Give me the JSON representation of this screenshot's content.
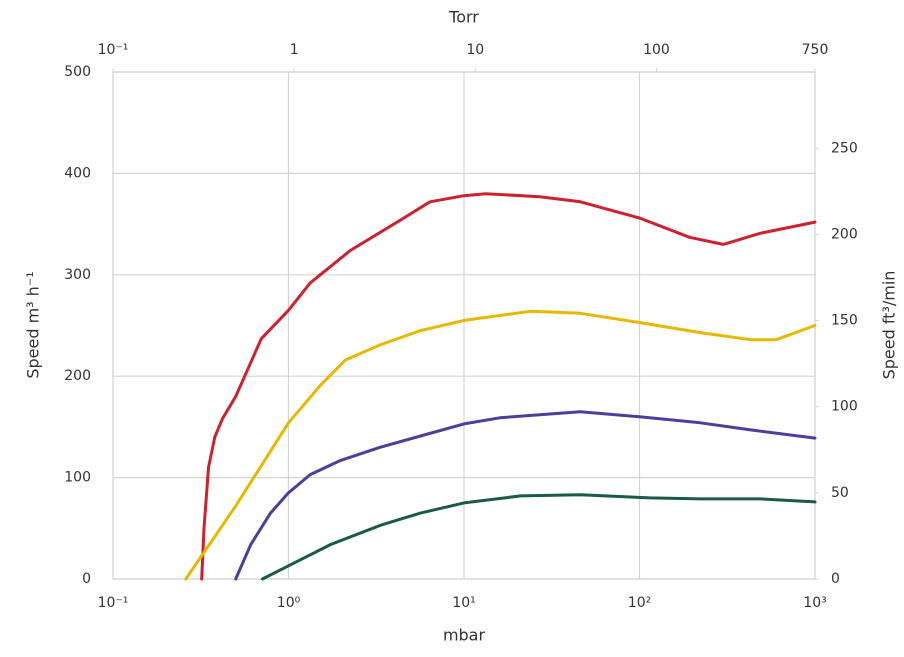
{
  "chart_data": {
    "type": "line",
    "xlabel": "mbar",
    "x2label": "Torr",
    "ylabel": "Speed m³ h⁻¹",
    "y2label": "Speed ft³/min",
    "xscale": "log",
    "grid": true,
    "xlim": [
      0.1,
      1000
    ],
    "xticks": [
      {
        "value": 0.1,
        "label": "10⁻¹"
      },
      {
        "value": 1,
        "label": "10⁰"
      },
      {
        "value": 10,
        "label": "10¹"
      },
      {
        "value": 100,
        "label": "10²"
      },
      {
        "value": 1000,
        "label": "10³"
      }
    ],
    "x2lim": [
      0.1,
      750
    ],
    "x2ticks": [
      {
        "value": 0.1,
        "label": "10⁻¹"
      },
      1,
      10,
      100,
      750
    ],
    "ylim": [
      0,
      500
    ],
    "yticks": [
      0,
      100,
      200,
      300,
      400,
      500
    ],
    "y2lim": [
      0,
      294.3
    ],
    "y2ticks": [
      0,
      50,
      100,
      150,
      200,
      250
    ],
    "series": [
      {
        "color": "#d0202e",
        "x": [
          0.32,
          0.33,
          0.35,
          0.38,
          0.42,
          0.5,
          0.7,
          1,
          1.33,
          2.25,
          4.35,
          6.4,
          10,
          13.3,
          27,
          46,
          100,
          193,
          300,
          490,
          1000
        ],
        "values": [
          0,
          50,
          110,
          140,
          158,
          180,
          237,
          265,
          292,
          324,
          354,
          372,
          378,
          380,
          377,
          372,
          356,
          337,
          330,
          341,
          352
        ]
      },
      {
        "color": "#e8b800",
        "x": [
          0.26,
          0.5,
          1,
          1.52,
          2.11,
          3.34,
          5.65,
          10,
          23.9,
          46,
          100,
          222,
          430,
          600,
          1000
        ],
        "values": [
          0,
          72,
          154,
          191,
          216,
          231,
          245,
          255,
          264,
          262,
          253,
          243,
          236,
          236,
          250
        ]
      },
      {
        "color": "#4a3f9c",
        "x": [
          0.5,
          0.61,
          0.79,
          1,
          1.33,
          1.98,
          3.34,
          5.65,
          10,
          16,
          46,
          100,
          222,
          430,
          1000
        ],
        "values": [
          0,
          34,
          65,
          85,
          103,
          117,
          130,
          141,
          153,
          159,
          165,
          160,
          154,
          147,
          139
        ]
      },
      {
        "color": "#1a5a48",
        "x": [
          0.71,
          1,
          1.74,
          3.34,
          5.65,
          10,
          21,
          46,
          115,
          222,
          490,
          1000
        ],
        "values": [
          0,
          13,
          34,
          53,
          65,
          75,
          82,
          83,
          80,
          79,
          79,
          76
        ]
      }
    ]
  }
}
